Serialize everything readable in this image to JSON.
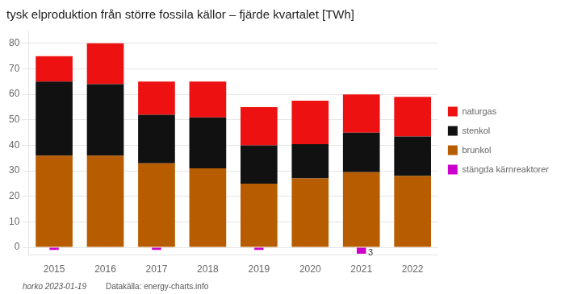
{
  "chart_data": {
    "type": "bar",
    "title": "tysk elproduktion från större fossila källor – fjärde kvartalet [TWh]",
    "categories": [
      "2015",
      "2016",
      "2017",
      "2018",
      "2019",
      "2020",
      "2021",
      "2022"
    ],
    "series": [
      {
        "name": "brunkol",
        "color": "#b85c00",
        "values": [
          36.0,
          36.0,
          33.0,
          31.0,
          25.0,
          27.0,
          29.5,
          28.0
        ]
      },
      {
        "name": "stenkol",
        "color": "#111111",
        "values": [
          29.0,
          28.0,
          19.0,
          20.0,
          15.0,
          13.5,
          15.5,
          15.5
        ]
      },
      {
        "name": "naturgas",
        "color": "#ee1111",
        "values": [
          10.0,
          16.0,
          13.0,
          14.0,
          15.0,
          17.0,
          15.0,
          15.5
        ]
      },
      {
        "name": "stängda kärnreaktorer",
        "color": "#cc00cc",
        "values": [
          -1.0,
          0.0,
          -1.0,
          0.0,
          -1.0,
          0.0,
          -2.5,
          0.0
        ]
      }
    ],
    "stacked": true,
    "ylim": [
      -3,
      85
    ],
    "yticks": [
      0,
      10,
      20,
      30,
      40,
      50,
      60,
      70,
      80
    ],
    "grid": true,
    "legend": "right",
    "annotations": [
      {
        "text": "3",
        "x": "2021",
        "y": -2.3
      }
    ],
    "footer": [
      "horko 2023-01-19",
      "Datakälla: energy-charts.info"
    ]
  }
}
